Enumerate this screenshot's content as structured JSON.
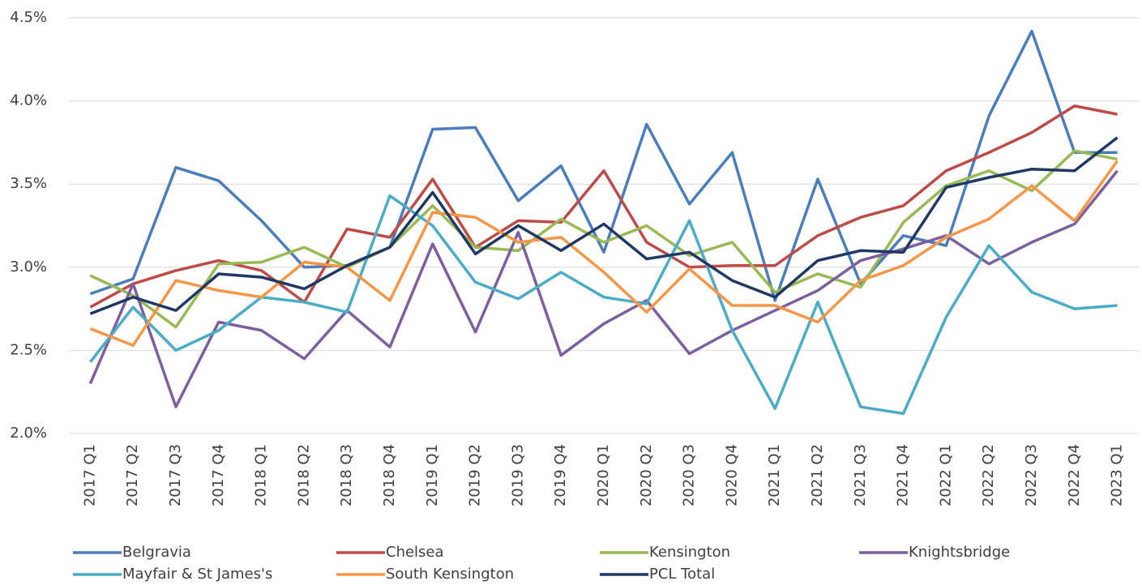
{
  "chart_data": {
    "type": "line",
    "categories": [
      "2017 Q1",
      "2017 Q2",
      "2017 Q3",
      "2017 Q4",
      "2018 Q1",
      "2018 Q2",
      "2018 Q3",
      "2018 Q4",
      "2019 Q1",
      "2019 Q2",
      "2019 Q3",
      "2019 Q4",
      "2020 Q1",
      "2020 Q2",
      "2020 Q3",
      "2020 Q4",
      "2021 Q1",
      "2021 Q2",
      "2021 Q3",
      "2021 Q4",
      "2022 Q1",
      "2022 Q2",
      "2022 Q3",
      "2022 Q4",
      "2023 Q1"
    ],
    "series": [
      {
        "name": "Belgravia",
        "color": "#4a7ebb",
        "values": [
          2.84,
          2.93,
          3.6,
          3.52,
          3.28,
          3.0,
          3.01,
          3.12,
          3.83,
          3.84,
          3.4,
          3.61,
          3.09,
          3.86,
          3.38,
          3.69,
          2.8,
          3.53,
          2.9,
          3.19,
          3.13,
          3.91,
          4.42,
          3.69,
          3.69
        ]
      },
      {
        "name": "Chelsea",
        "color": "#be4b48",
        "values": [
          2.76,
          2.9,
          2.98,
          3.04,
          2.98,
          2.79,
          3.23,
          3.18,
          3.53,
          3.12,
          3.28,
          3.27,
          3.58,
          3.15,
          3.0,
          3.01,
          3.01,
          3.19,
          3.3,
          3.37,
          3.58,
          3.69,
          3.81,
          3.97,
          3.92
        ]
      },
      {
        "name": "Kensington",
        "color": "#98b954",
        "values": [
          2.95,
          2.83,
          2.64,
          3.02,
          3.03,
          3.12,
          3.0,
          3.12,
          3.37,
          3.12,
          3.1,
          3.29,
          3.15,
          3.25,
          3.07,
          3.15,
          2.85,
          2.96,
          2.88,
          3.27,
          3.49,
          3.58,
          3.46,
          3.7,
          3.65
        ]
      },
      {
        "name": "Knightsbridge",
        "color": "#7d5fa0",
        "values": [
          2.3,
          2.9,
          2.16,
          2.67,
          2.62,
          2.45,
          2.74,
          2.52,
          3.14,
          2.61,
          3.21,
          2.47,
          2.66,
          2.8,
          2.48,
          2.62,
          2.74,
          2.86,
          3.04,
          3.11,
          3.19,
          3.02,
          3.15,
          3.26,
          3.58
        ]
      },
      {
        "name": "Mayfair & St James's",
        "color": "#4bacc6",
        "values": [
          2.43,
          2.76,
          2.5,
          2.62,
          2.82,
          2.79,
          2.73,
          3.43,
          3.25,
          2.91,
          2.81,
          2.97,
          2.82,
          2.78,
          3.28,
          2.62,
          2.15,
          2.79,
          2.16,
          2.12,
          2.7,
          3.13,
          2.85,
          2.75,
          2.77
        ]
      },
      {
        "name": "South Kensington",
        "color": "#f79646",
        "values": [
          2.63,
          2.53,
          2.92,
          2.86,
          2.82,
          3.03,
          3.0,
          2.8,
          3.33,
          3.3,
          3.15,
          3.18,
          2.97,
          2.73,
          2.99,
          2.77,
          2.77,
          2.67,
          2.92,
          3.01,
          3.18,
          3.29,
          3.49,
          3.28,
          3.64
        ]
      },
      {
        "name": "PCL Total",
        "color": "#1f3864",
        "values": [
          2.72,
          2.82,
          2.74,
          2.96,
          2.94,
          2.87,
          3.01,
          3.12,
          3.45,
          3.08,
          3.25,
          3.1,
          3.26,
          3.05,
          3.09,
          2.92,
          2.82,
          3.04,
          3.1,
          3.09,
          3.48,
          3.54,
          3.59,
          3.58,
          3.78
        ]
      }
    ],
    "ylim": [
      2.0,
      4.5
    ],
    "yticks": [
      {
        "value": 2.0,
        "label": "2.0%"
      },
      {
        "value": 2.5,
        "label": "2.5%"
      },
      {
        "value": 3.0,
        "label": "3.0%"
      },
      {
        "value": 3.5,
        "label": "3.5%"
      },
      {
        "value": 4.0,
        "label": "4.0%"
      },
      {
        "value": 4.5,
        "label": "4.5%"
      }
    ],
    "grid": true
  }
}
